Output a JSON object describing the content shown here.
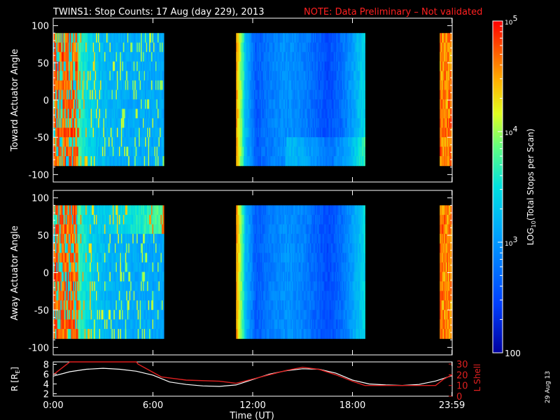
{
  "title": "TWINS1: Stop Counts: 17 Aug (day 229), 2013",
  "note": "NOTE: Data Preliminary – Not validated",
  "colors": {
    "note": "#ff2020",
    "axis": "#ffffff",
    "lshell": "#e02020",
    "rline": "#ffffff"
  },
  "chart_data": [
    {
      "type": "heatmap",
      "panel": "top",
      "ylabel": "Toward Actuator Angle",
      "ylim": [
        -110,
        110
      ],
      "yticks": [
        100,
        50,
        0,
        -50,
        -100
      ],
      "xlim_hours": [
        0,
        24
      ],
      "data_segments_hours": [
        [
          0.0,
          6.65
        ],
        [
          11.0,
          18.75
        ],
        [
          23.25,
          24.0
        ]
      ],
      "data_angle_range": [
        -88,
        90
      ],
      "note_values": "log10 stops per scan, approx 2.5 (blue) to 5 (red)"
    },
    {
      "type": "heatmap",
      "panel": "middle",
      "ylabel": "Away Actuator Angle",
      "ylim": [
        -110,
        110
      ],
      "yticks": [
        100,
        50,
        0,
        -50,
        -100
      ],
      "xlim_hours": [
        0,
        24
      ],
      "data_segments_hours": [
        [
          0.0,
          6.65
        ],
        [
          11.0,
          18.75
        ],
        [
          23.25,
          24.0
        ]
      ],
      "data_angle_range": [
        -88,
        90
      ]
    },
    {
      "type": "line",
      "panel": "bottom",
      "ylabel_left": "R [R",
      "ylabel_left_sub": "E",
      "ylabel_left_end": "]",
      "ylabel_right": "L Shell",
      "yticks_left": [
        8,
        6,
        4,
        2
      ],
      "yticks_right": [
        30,
        20,
        10,
        0
      ],
      "ylim_left": [
        1.5,
        8.5
      ],
      "ylim_right": [
        0,
        32
      ],
      "series": [
        {
          "name": "R",
          "x": [
            0.0,
            1.0,
            2.0,
            3.0,
            4.0,
            5.0,
            6.0,
            7.0,
            8.0,
            9.0,
            10.0,
            11.0,
            12.0,
            13.0,
            14.0,
            15.0,
            16.0,
            17.0,
            18.0,
            19.0,
            20.0,
            21.0,
            22.0,
            23.0,
            24.0
          ],
          "values": [
            5.6,
            6.5,
            7.0,
            7.2,
            7.0,
            6.6,
            5.8,
            4.4,
            3.9,
            3.6,
            3.5,
            3.8,
            4.9,
            6.0,
            6.7,
            7.1,
            7.0,
            6.2,
            4.8,
            4.0,
            3.8,
            3.7,
            3.9,
            4.6,
            5.7
          ]
        },
        {
          "name": "L Shell",
          "x": [
            0.0,
            1.0,
            1.1,
            5.0,
            5.1,
            6.5,
            8.0,
            10.0,
            11.0,
            12.0,
            13.0,
            14.0,
            15.0,
            16.0,
            17.0,
            18.0,
            18.75,
            19.0,
            20.0,
            21.0,
            22.0,
            23.0,
            23.5,
            24.0
          ],
          "values": [
            20.0,
            32.0,
            32.0,
            32.0,
            30.0,
            18.0,
            15.0,
            14.0,
            12.0,
            16.0,
            20.0,
            24.0,
            27.0,
            25.0,
            20.0,
            14.0,
            10.0,
            10.0,
            10.0,
            10.0,
            10.0,
            10.0,
            16.0,
            20.0
          ]
        }
      ]
    }
  ],
  "xaxis": {
    "ticks_hours": [
      0,
      6,
      12,
      18,
      23.9833
    ],
    "tick_labels": [
      "0:00",
      "6:00",
      "12:00",
      "18:00",
      "23:59"
    ],
    "label": "Time (UT)"
  },
  "colorbar": {
    "label_pre": "LOG",
    "label_sub": "10",
    "label_post": "(Total Stops per Scan)",
    "ticks": [
      {
        "value": 5,
        "base": "10",
        "exp": "5"
      },
      {
        "value": 4,
        "base": "10",
        "exp": "4"
      },
      {
        "value": 3,
        "base": "10",
        "exp": "3"
      },
      {
        "value": 2,
        "text": "100"
      }
    ],
    "range_log": [
      2,
      5
    ]
  },
  "side_date": "29 Aug 13"
}
